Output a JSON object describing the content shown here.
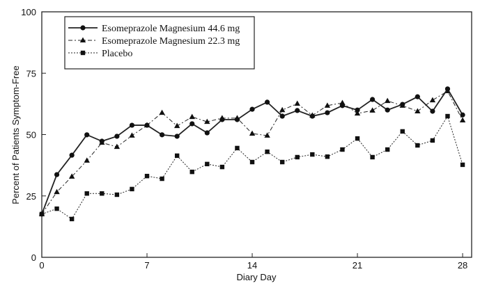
{
  "chart_data": {
    "type": "line",
    "title": "",
    "xlabel": "Diary Day",
    "ylabel": "Percent of Patients Symptom-Free",
    "xlim": [
      0,
      28.6
    ],
    "ylim": [
      0,
      100
    ],
    "xticks": [
      0,
      7,
      14,
      21,
      28
    ],
    "yticks": [
      0,
      25,
      50,
      75,
      100
    ],
    "legend_position": "top-left",
    "x": [
      0,
      1,
      2,
      3,
      4,
      5,
      6,
      7,
      8,
      9,
      10,
      11,
      12,
      13,
      14,
      15,
      16,
      17,
      18,
      19,
      20,
      21,
      22,
      23,
      24,
      25,
      26,
      27,
      28
    ],
    "series": [
      {
        "name": "Esomeprazole Magnesium 44.6 mg",
        "marker": "circle",
        "style": "solid",
        "values": [
          17.6,
          33.7,
          41.6,
          49.9,
          47.3,
          49.3,
          53.8,
          53.8,
          49.9,
          49.3,
          54.4,
          50.7,
          56.1,
          56.1,
          60.3,
          63.2,
          57.5,
          59.8,
          57.5,
          58.9,
          61.8,
          60,
          64.3,
          60,
          62.3,
          65.4,
          59.5,
          68.6,
          58
        ]
      },
      {
        "name": "Esomeprazole Magnesium 22.3 mg",
        "marker": "triangle",
        "style": "dashdot",
        "values": [
          17.6,
          26.6,
          32.9,
          39.4,
          46.7,
          45,
          49.6,
          53.8,
          58.9,
          53.5,
          57.2,
          55.2,
          56.7,
          56.7,
          50.4,
          49.6,
          60,
          62.6,
          57.8,
          61.8,
          62.9,
          58.6,
          59.8,
          63.7,
          61.8,
          59.5,
          64,
          67.7,
          55.8
        ]
      },
      {
        "name": "Placebo",
        "marker": "square",
        "style": "dotted",
        "values": [
          17.6,
          19.8,
          15.6,
          26,
          26,
          25.5,
          27.8,
          33.1,
          32,
          41.4,
          34.8,
          38,
          36.8,
          44.5,
          38.8,
          43,
          38.8,
          40.8,
          41.9,
          41,
          43.9,
          48.4,
          40.8,
          43.9,
          51.3,
          45.6,
          47.6,
          57.5,
          37.7
        ]
      }
    ]
  }
}
